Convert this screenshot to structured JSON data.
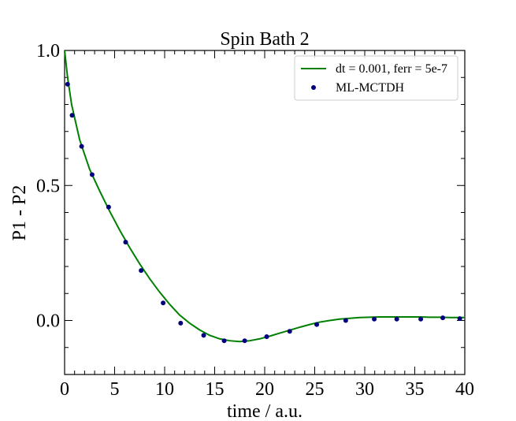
{
  "chart_data": {
    "type": "line",
    "title": "Spin Bath 2",
    "xlabel": "time / a.u.",
    "ylabel": "P1 - P2",
    "xlim": [
      0,
      40
    ],
    "ylim": [
      -0.2,
      1.0
    ],
    "xticks": [
      0,
      5,
      10,
      15,
      20,
      25,
      30,
      35,
      40
    ],
    "xtick_labels": [
      "0",
      "5",
      "10",
      "15",
      "20",
      "25",
      "30",
      "35",
      "40"
    ],
    "yticks": [
      0.0,
      0.5,
      1.0
    ],
    "ytick_labels": [
      "0.0",
      "0.5",
      "1.0"
    ],
    "grid": false,
    "legend_position": "top-right",
    "series": [
      {
        "name": "dt = 0.001, ferr = 5e-7",
        "kind": "line",
        "color": "#008000",
        "x": [
          0,
          0.3,
          0.7,
          1.5,
          2.5,
          3.5,
          4.5,
          5.5,
          6.5,
          7.5,
          8.5,
          9.5,
          10.5,
          11.5,
          12.5,
          13.5,
          14.5,
          15.5,
          16.5,
          17.5,
          18.5,
          19.5,
          20.5,
          21.5,
          22.5,
          23.5,
          24.5,
          25.5,
          26.5,
          27.5,
          28.5,
          29.5,
          30.5,
          31.5,
          32.5,
          33.5,
          34.5,
          35.5,
          36.5,
          37.5,
          38.5,
          39.5,
          40
        ],
        "y": [
          1.0,
          0.9,
          0.8,
          0.67,
          0.56,
          0.48,
          0.405,
          0.335,
          0.27,
          0.21,
          0.155,
          0.105,
          0.06,
          0.02,
          -0.01,
          -0.035,
          -0.055,
          -0.068,
          -0.075,
          -0.078,
          -0.075,
          -0.068,
          -0.058,
          -0.047,
          -0.036,
          -0.025,
          -0.015,
          -0.006,
          0.0,
          0.005,
          0.008,
          0.011,
          0.012,
          0.013,
          0.013,
          0.013,
          0.013,
          0.013,
          0.012,
          0.012,
          0.011,
          0.011,
          0.011
        ]
      },
      {
        "name": "ML-MCTDH",
        "kind": "scatter",
        "color": "#00007f",
        "x": [
          0.3,
          0.75,
          1.7,
          2.75,
          4.4,
          6.1,
          7.65,
          9.85,
          11.6,
          13.9,
          15.95,
          18.0,
          20.2,
          22.5,
          25.2,
          28.1,
          30.95,
          33.2,
          35.6,
          37.8,
          39.5
        ],
        "y": [
          0.875,
          0.76,
          0.645,
          0.54,
          0.42,
          0.29,
          0.185,
          0.065,
          -0.01,
          -0.055,
          -0.075,
          -0.075,
          -0.06,
          -0.04,
          -0.015,
          0.0,
          0.005,
          0.005,
          0.005,
          0.01,
          0.007
        ]
      }
    ]
  }
}
